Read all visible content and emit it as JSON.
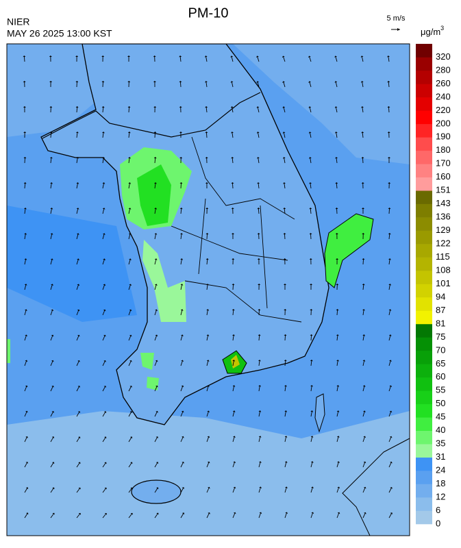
{
  "header": {
    "title": "PM-10",
    "agency": "NIER",
    "datetime": "MAY 26 2025 13:00 KST",
    "wind_scale": "5 m/s",
    "unit": {
      "text": "μg/m",
      "superscript": "3"
    }
  },
  "colorbar": {
    "labels": [
      0,
      6,
      12,
      18,
      24,
      31,
      35,
      40,
      45,
      50,
      55,
      60,
      65,
      70,
      75,
      81,
      87,
      94,
      101,
      108,
      115,
      122,
      129,
      136,
      143,
      151,
      160,
      170,
      180,
      190,
      200,
      220,
      240,
      260,
      280,
      320
    ],
    "colors": [
      "#a3c9e9",
      "#8bbdec",
      "#73aeee",
      "#5aa0f0",
      "#3e93f4",
      "#9af79a",
      "#6ef56e",
      "#40ee40",
      "#22e022",
      "#18d018",
      "#10c010",
      "#0cb00c",
      "#08a008",
      "#059005",
      "#037803",
      "#f2f200",
      "#e2e200",
      "#d2d200",
      "#c4c400",
      "#b4b400",
      "#a8a800",
      "#9a9a00",
      "#8c8c00",
      "#7e7e00",
      "#6a6a00",
      "#ff9c9c",
      "#ff8282",
      "#ff6868",
      "#ff4c4c",
      "#ff2424",
      "#ff0000",
      "#e40000",
      "#cc0000",
      "#b40000",
      "#9a0000",
      "#700000"
    ]
  }
}
